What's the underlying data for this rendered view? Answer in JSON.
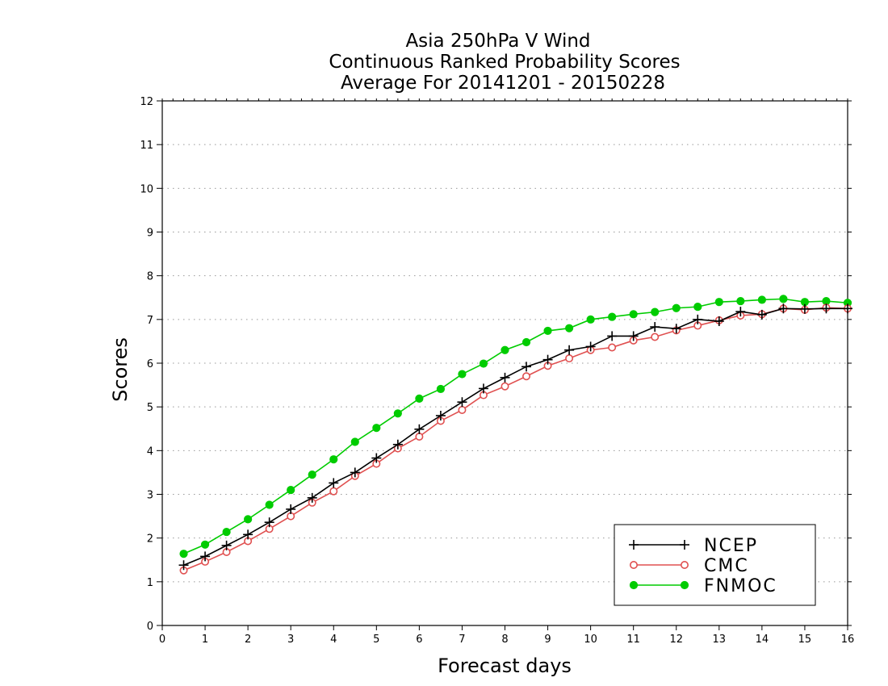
{
  "chart_data": {
    "type": "line",
    "title_lines": [
      "Asia 250hPa V Wind",
      "Continuous Ranked Probability Scores",
      "Average For 20141201 - 20150228"
    ],
    "xlabel": "Forecast days",
    "ylabel": "Scores",
    "xlim": [
      0,
      16
    ],
    "ylim": [
      0,
      12
    ],
    "xticks": [
      "0",
      "1",
      "2",
      "3",
      "4",
      "5",
      "6",
      "7",
      "8",
      "9",
      "10",
      "11",
      "12",
      "13",
      "14",
      "15",
      "16"
    ],
    "yticks": [
      "0",
      "1",
      "2",
      "3",
      "4",
      "5",
      "6",
      "7",
      "8",
      "9",
      "10",
      "11",
      "12"
    ],
    "grid": "horizontal dotted",
    "legend_position": "bottom-right",
    "x": [
      0.5,
      1,
      1.5,
      2,
      2.5,
      3,
      3.5,
      4,
      4.5,
      5,
      5.5,
      6,
      6.5,
      7,
      7.5,
      8,
      8.5,
      9,
      9.5,
      10,
      10.5,
      11,
      11.5,
      12,
      12.5,
      13,
      13.5,
      14,
      14.5,
      15,
      15.5,
      16
    ],
    "series": [
      {
        "name": "NCEP",
        "color": "#000000",
        "marker": "plus",
        "values": [
          1.38,
          1.58,
          1.83,
          2.08,
          2.36,
          2.66,
          2.92,
          3.26,
          3.5,
          3.83,
          4.14,
          4.49,
          4.8,
          5.11,
          5.42,
          5.67,
          5.92,
          6.08,
          6.3,
          6.38,
          6.62,
          6.62,
          6.83,
          6.79,
          7.0,
          6.96,
          7.18,
          7.11,
          7.25,
          7.24,
          7.25,
          7.25
        ]
      },
      {
        "name": "CMC",
        "color": "#e05050",
        "marker": "open-circle",
        "values": [
          1.26,
          1.46,
          1.68,
          1.93,
          2.21,
          2.5,
          2.81,
          3.07,
          3.42,
          3.7,
          4.05,
          4.32,
          4.68,
          4.93,
          5.27,
          5.47,
          5.7,
          5.94,
          6.11,
          6.3,
          6.36,
          6.52,
          6.6,
          6.75,
          6.86,
          6.98,
          7.09,
          7.12,
          7.25,
          7.22,
          7.27,
          7.25
        ]
      },
      {
        "name": "FNMOC",
        "color": "#00cc00",
        "marker": "filled-circle",
        "values": [
          1.64,
          1.85,
          2.14,
          2.43,
          2.76,
          3.1,
          3.45,
          3.8,
          4.2,
          4.52,
          4.85,
          5.19,
          5.41,
          5.75,
          5.99,
          6.3,
          6.48,
          6.74,
          6.8,
          7.0,
          7.06,
          7.12,
          7.17,
          7.26,
          7.29,
          7.4,
          7.42,
          7.45,
          7.47,
          7.4,
          7.42,
          7.38
        ]
      }
    ]
  }
}
